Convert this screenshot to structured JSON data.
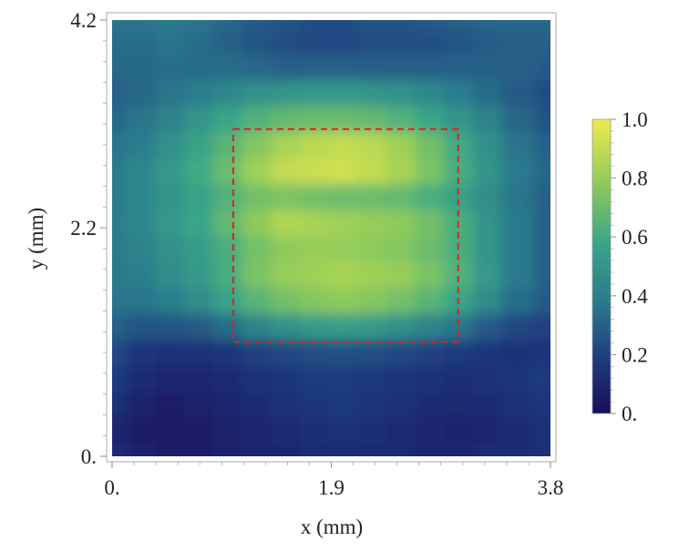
{
  "chart_data": {
    "type": "heatmap",
    "title": "",
    "xlabel": "x (mm)",
    "ylabel": "y (mm)",
    "xlim": [
      0,
      3.8
    ],
    "ylim": [
      0,
      4.2
    ],
    "x_ticks": [
      {
        "value": 0,
        "label": "0."
      },
      {
        "value": 1.9,
        "label": "1.9"
      },
      {
        "value": 3.8,
        "label": "3.8"
      }
    ],
    "y_ticks": [
      {
        "value": 0,
        "label": "0."
      },
      {
        "value": 2.2,
        "label": "2.2"
      },
      {
        "value": 4.2,
        "label": "4.2"
      }
    ],
    "colorbar": {
      "range": [
        0,
        1.0
      ],
      "colormap": "viridis-like",
      "ticks": [
        {
          "value": 0,
          "label": "0."
        },
        {
          "value": 0.2,
          "label": "0.2"
        },
        {
          "value": 0.4,
          "label": "0.4"
        },
        {
          "value": 0.6,
          "label": "0.6"
        },
        {
          "value": 0.8,
          "label": "0.8"
        },
        {
          "value": 1.0,
          "label": "1.0"
        }
      ]
    },
    "highlight_region": {
      "x": [
        1.05,
        3.0
      ],
      "y": [
        1.1,
        3.15
      ],
      "color": "#e02020",
      "style": "dashed"
    },
    "grid_x": [
      0,
      0.25,
      0.5,
      0.75,
      1.0,
      1.25,
      1.5,
      1.75,
      2.0,
      2.25,
      2.5,
      2.75,
      3.0,
      3.25,
      3.5,
      3.8
    ],
    "grid_y": [
      0,
      0.25,
      0.5,
      0.75,
      1.0,
      1.25,
      1.5,
      1.75,
      2.0,
      2.25,
      2.5,
      2.75,
      3.0,
      3.25,
      3.5,
      3.75,
      4.0,
      4.2
    ],
    "values": [
      [
        0.12,
        0.08,
        0.06,
        0.07,
        0.09,
        0.1,
        0.1,
        0.11,
        0.12,
        0.12,
        0.11,
        0.1,
        0.1,
        0.11,
        0.12,
        0.14
      ],
      [
        0.1,
        0.06,
        0.05,
        0.06,
        0.08,
        0.1,
        0.12,
        0.13,
        0.14,
        0.13,
        0.12,
        0.1,
        0.09,
        0.1,
        0.12,
        0.14
      ],
      [
        0.14,
        0.08,
        0.07,
        0.08,
        0.1,
        0.12,
        0.14,
        0.16,
        0.17,
        0.16,
        0.14,
        0.12,
        0.11,
        0.12,
        0.14,
        0.16
      ],
      [
        0.18,
        0.12,
        0.1,
        0.1,
        0.12,
        0.14,
        0.16,
        0.18,
        0.18,
        0.17,
        0.16,
        0.14,
        0.13,
        0.14,
        0.16,
        0.18
      ],
      [
        0.22,
        0.16,
        0.14,
        0.14,
        0.16,
        0.2,
        0.22,
        0.24,
        0.25,
        0.24,
        0.22,
        0.2,
        0.18,
        0.16,
        0.14,
        0.16
      ],
      [
        0.3,
        0.26,
        0.26,
        0.28,
        0.34,
        0.42,
        0.48,
        0.52,
        0.54,
        0.52,
        0.48,
        0.42,
        0.36,
        0.28,
        0.22,
        0.2
      ],
      [
        0.36,
        0.36,
        0.4,
        0.46,
        0.56,
        0.66,
        0.72,
        0.76,
        0.78,
        0.76,
        0.72,
        0.66,
        0.58,
        0.46,
        0.34,
        0.28
      ],
      [
        0.38,
        0.4,
        0.46,
        0.52,
        0.62,
        0.74,
        0.8,
        0.82,
        0.84,
        0.82,
        0.8,
        0.74,
        0.64,
        0.52,
        0.38,
        0.3
      ],
      [
        0.38,
        0.42,
        0.48,
        0.54,
        0.62,
        0.72,
        0.78,
        0.8,
        0.8,
        0.78,
        0.76,
        0.7,
        0.62,
        0.5,
        0.38,
        0.3
      ],
      [
        0.4,
        0.44,
        0.52,
        0.58,
        0.68,
        0.78,
        0.86,
        0.84,
        0.82,
        0.8,
        0.78,
        0.72,
        0.62,
        0.5,
        0.38,
        0.3
      ],
      [
        0.38,
        0.44,
        0.5,
        0.56,
        0.64,
        0.72,
        0.74,
        0.72,
        0.7,
        0.7,
        0.68,
        0.62,
        0.56,
        0.46,
        0.36,
        0.3
      ],
      [
        0.38,
        0.44,
        0.52,
        0.6,
        0.7,
        0.82,
        0.9,
        0.92,
        0.93,
        0.9,
        0.84,
        0.74,
        0.62,
        0.5,
        0.38,
        0.32
      ],
      [
        0.36,
        0.4,
        0.48,
        0.56,
        0.66,
        0.76,
        0.84,
        0.88,
        0.9,
        0.88,
        0.82,
        0.72,
        0.6,
        0.48,
        0.36,
        0.3
      ],
      [
        0.32,
        0.36,
        0.42,
        0.5,
        0.58,
        0.64,
        0.68,
        0.7,
        0.7,
        0.68,
        0.64,
        0.58,
        0.5,
        0.42,
        0.32,
        0.26
      ],
      [
        0.3,
        0.32,
        0.36,
        0.4,
        0.44,
        0.48,
        0.5,
        0.52,
        0.52,
        0.5,
        0.48,
        0.44,
        0.4,
        0.34,
        0.28,
        0.24
      ],
      [
        0.32,
        0.32,
        0.34,
        0.34,
        0.34,
        0.32,
        0.3,
        0.3,
        0.3,
        0.3,
        0.3,
        0.3,
        0.3,
        0.3,
        0.3,
        0.28
      ],
      [
        0.34,
        0.34,
        0.36,
        0.34,
        0.3,
        0.26,
        0.24,
        0.22,
        0.22,
        0.24,
        0.24,
        0.24,
        0.26,
        0.28,
        0.3,
        0.3
      ],
      [
        0.36,
        0.36,
        0.38,
        0.36,
        0.32,
        0.28,
        0.26,
        0.24,
        0.24,
        0.26,
        0.26,
        0.28,
        0.3,
        0.32,
        0.32,
        0.32
      ]
    ]
  }
}
